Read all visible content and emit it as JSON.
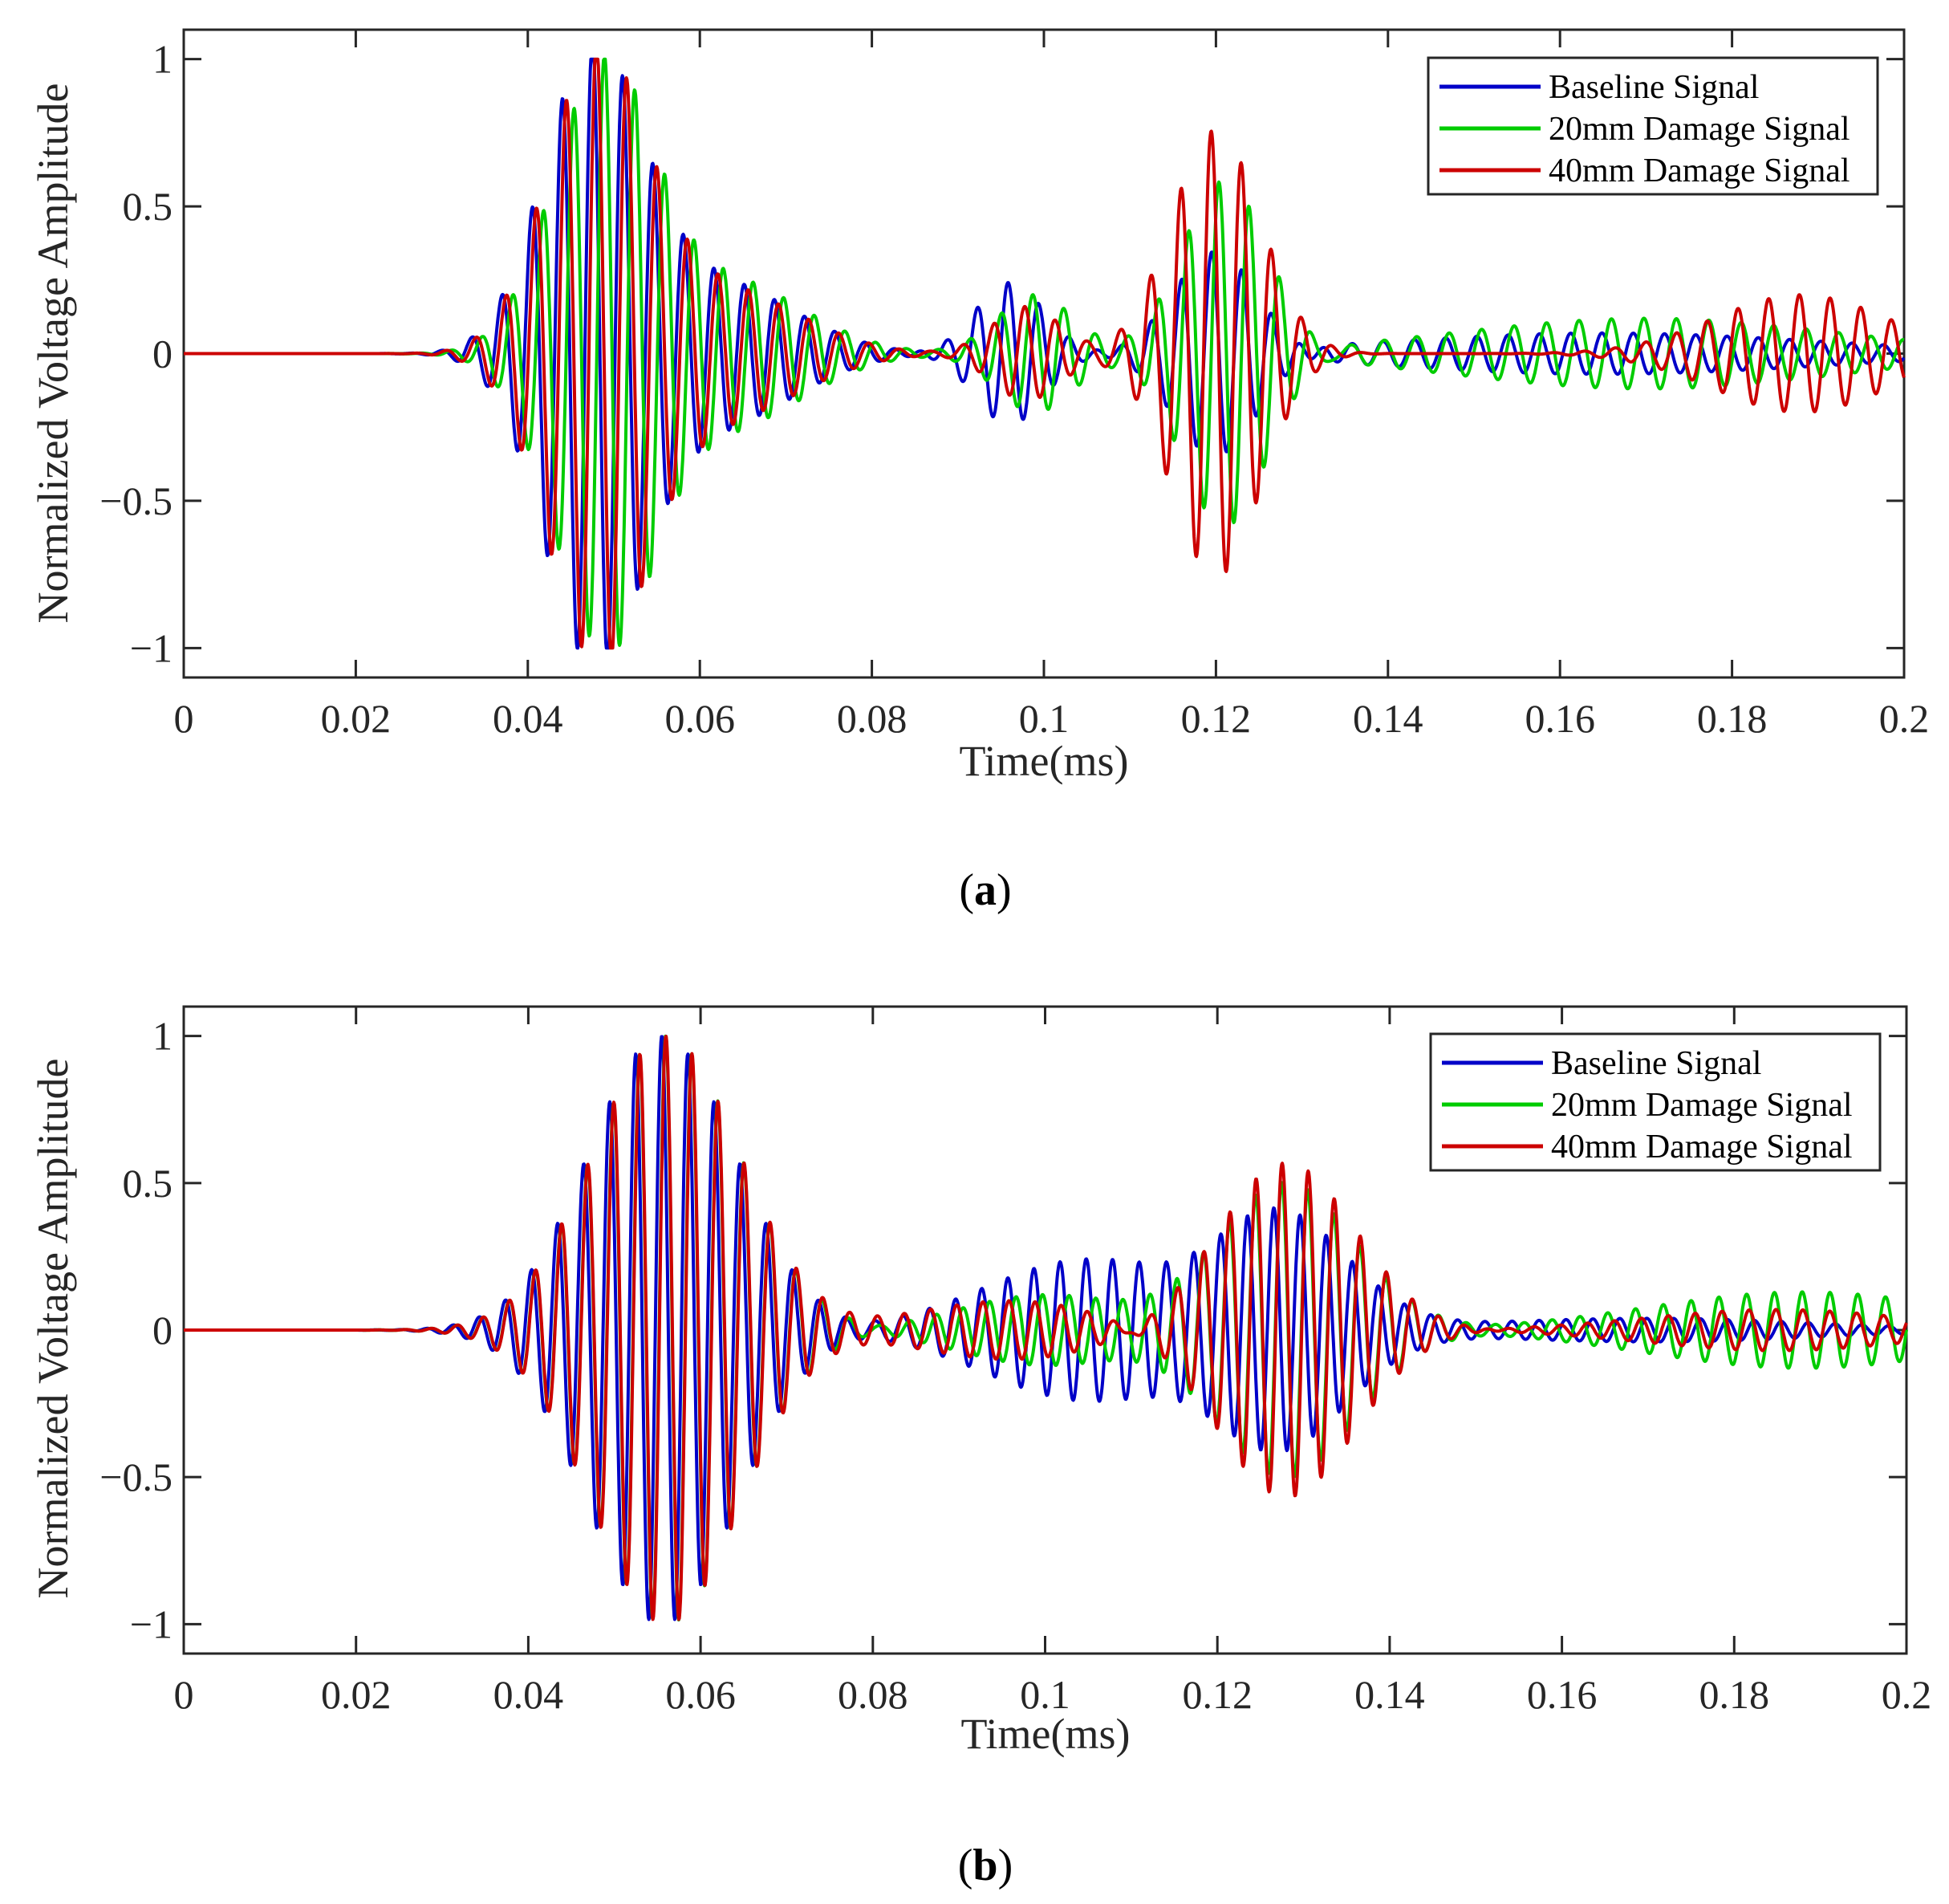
{
  "chart_data": [
    {
      "type": "line",
      "caption": "a",
      "xlabel": "Time(ms)",
      "ylabel": "Normalized Voltage Amplitude",
      "xlim": [
        0,
        0.2
      ],
      "ylim": [
        -1.1,
        1.1
      ],
      "xticks": [
        0,
        0.02,
        0.04,
        0.06,
        0.08,
        0.1,
        0.12,
        0.14,
        0.16,
        0.18,
        0.2
      ],
      "xtick_labels": [
        "0",
        "0.02",
        "0.04",
        "0.06",
        "0.08",
        "0.1",
        "0.12",
        "0.14",
        "0.16",
        "0.18",
        "0.2"
      ],
      "yticks": [
        -1,
        -0.5,
        0,
        0.5,
        1
      ],
      "ytick_labels": [
        "−1",
        "−0.5",
        "0",
        "0.5",
        "1"
      ],
      "legend_position": "top-right",
      "series": [
        {
          "name": "Baseline Signal",
          "color": "#0000c8",
          "packets": [
            {
              "t0": 0.0475,
              "width": 0.0058,
              "amp": 1.0,
              "f": 285,
              "phase": 0
            },
            {
              "t0": 0.062,
              "width": 0.009,
              "amp": 0.24,
              "f": 285,
              "phase": 0.6
            },
            {
              "t0": 0.096,
              "width": 0.004,
              "amp": 0.24,
              "f": 280,
              "phase": 0.3
            },
            {
              "t0": 0.12,
              "width": 0.005,
              "amp": 0.36,
              "f": 285,
              "phase": 0.9
            },
            {
              "t0": 0.165,
              "width": 0.025,
              "amp": 0.07,
              "f": 275,
              "phase": 0.2
            }
          ]
        },
        {
          "name": "20mm Damage Signal",
          "color": "#00cc00",
          "packets": [
            {
              "t0": 0.049,
              "width": 0.006,
              "amp": 0.98,
              "f": 280,
              "phase": 0.1
            },
            {
              "t0": 0.063,
              "width": 0.009,
              "amp": 0.25,
              "f": 280,
              "phase": 0.7
            },
            {
              "t0": 0.099,
              "width": 0.0045,
              "amp": 0.2,
              "f": 275,
              "phase": 0.5
            },
            {
              "t0": 0.121,
              "width": 0.005,
              "amp": 0.58,
              "f": 285,
              "phase": 1.2
            },
            {
              "t0": 0.17,
              "width": 0.022,
              "amp": 0.12,
              "f": 265,
              "phase": 0.4
            }
          ]
        },
        {
          "name": "40mm Damage Signal",
          "color": "#cc0000",
          "packets": [
            {
              "t0": 0.048,
              "width": 0.0058,
              "amp": 1.0,
              "f": 285,
              "phase": 0.05
            },
            {
              "t0": 0.0625,
              "width": 0.009,
              "amp": 0.22,
              "f": 285,
              "phase": 0.65
            },
            {
              "t0": 0.098,
              "width": 0.004,
              "amp": 0.16,
              "f": 280,
              "phase": 0.4
            },
            {
              "t0": 0.12,
              "width": 0.0052,
              "amp": 0.76,
              "f": 285,
              "phase": 1.0
            },
            {
              "t0": 0.188,
              "width": 0.01,
              "amp": 0.2,
              "f": 280,
              "phase": 0.3
            }
          ]
        }
      ]
    },
    {
      "type": "line",
      "caption": "b",
      "xlabel": "Time(ms)",
      "ylabel": "Normalized Voltage Amplitude",
      "xlim": [
        0,
        0.2
      ],
      "ylim": [
        -1.1,
        1.1
      ],
      "xticks": [
        0,
        0.02,
        0.04,
        0.06,
        0.08,
        0.1,
        0.12,
        0.14,
        0.16,
        0.18,
        0.2
      ],
      "xtick_labels": [
        "0",
        "0.02",
        "0.04",
        "0.06",
        "0.08",
        "0.1",
        "0.12",
        "0.14",
        "0.16",
        "0.18",
        "0.2"
      ],
      "yticks": [
        -1,
        -0.5,
        0,
        0.5,
        1
      ],
      "ytick_labels": [
        "−1",
        "−0.5",
        "0",
        "0.5",
        "1"
      ],
      "legend_position": "top-right",
      "series": [
        {
          "name": "Baseline Signal",
          "color": "#0000c8",
          "packets": [
            {
              "t0": 0.0555,
              "width": 0.0085,
              "amp": 1.0,
              "f": 330,
              "phase": 0
            },
            {
              "t0": 0.105,
              "width": 0.012,
              "amp": 0.24,
              "f": 330,
              "phase": 0.5
            },
            {
              "t0": 0.127,
              "width": 0.008,
              "amp": 0.4,
              "f": 330,
              "phase": 0.8
            },
            {
              "t0": 0.17,
              "width": 0.02,
              "amp": 0.04,
              "f": 320,
              "phase": 0.3
            }
          ]
        },
        {
          "name": "20mm Damage Signal",
          "color": "#00cc00",
          "packets": [
            {
              "t0": 0.056,
              "width": 0.0085,
              "amp": 1.0,
              "f": 330,
              "phase": 0.1
            },
            {
              "t0": 0.1,
              "width": 0.01,
              "amp": 0.12,
              "f": 325,
              "phase": 0.6
            },
            {
              "t0": 0.128,
              "width": 0.008,
              "amp": 0.5,
              "f": 330,
              "phase": 1.1
            },
            {
              "t0": 0.188,
              "width": 0.018,
              "amp": 0.13,
              "f": 310,
              "phase": 0.2
            }
          ]
        },
        {
          "name": "40mm Damage Signal",
          "color": "#cc0000",
          "packets": [
            {
              "t0": 0.056,
              "width": 0.0085,
              "amp": 1.0,
              "f": 330,
              "phase": 0.05
            },
            {
              "t0": 0.096,
              "width": 0.011,
              "amp": 0.1,
              "f": 330,
              "phase": 0.4
            },
            {
              "t0": 0.128,
              "width": 0.008,
              "amp": 0.57,
              "f": 330,
              "phase": 1.0
            },
            {
              "t0": 0.185,
              "width": 0.015,
              "amp": 0.07,
              "f": 320,
              "phase": 0.3
            }
          ]
        }
      ]
    }
  ]
}
